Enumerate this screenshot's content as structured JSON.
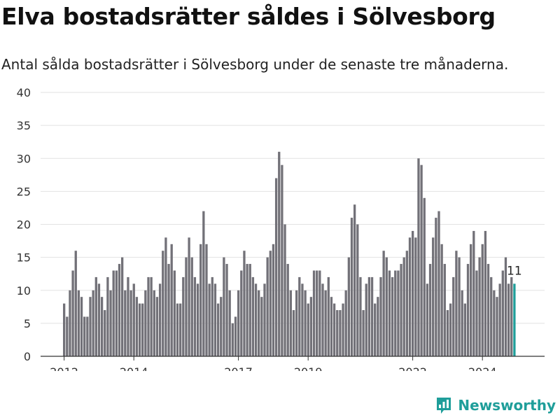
{
  "title": "Elva bostadsrätter såldes i Sölvesborg",
  "subtitle": "Antal sålda bostadsrätter i Sölvesborg under de senaste tre månaderna.",
  "brand": {
    "name": "Newsworthy",
    "icon": "newsworthy-logo-icon"
  },
  "colors": {
    "bar": "#727178",
    "highlight": "#1f9e9a",
    "grid": "#e2e2e2",
    "axis": "#333333"
  },
  "chart_data": {
    "type": "bar",
    "title": "",
    "xlabel": "",
    "ylabel": "",
    "ylim": [
      0,
      40
    ],
    "yticks": [
      0,
      5,
      10,
      15,
      20,
      25,
      30,
      35,
      40
    ],
    "xticks": [
      "2012",
      "2014",
      "2017",
      "2019",
      "2022",
      "2024"
    ],
    "grid": true,
    "legend": "none",
    "highlight_last": true,
    "last_label": "11",
    "values": [
      8,
      6,
      10,
      13,
      16,
      10,
      9,
      6,
      6,
      9,
      10,
      12,
      11,
      9,
      7,
      12,
      10,
      13,
      13,
      14,
      15,
      10,
      12,
      10,
      11,
      9,
      8,
      8,
      10,
      12,
      12,
      10,
      9,
      11,
      16,
      18,
      14,
      17,
      13,
      8,
      8,
      12,
      15,
      18,
      15,
      12,
      11,
      17,
      22,
      17,
      11,
      12,
      11,
      8,
      9,
      15,
      14,
      10,
      5,
      6,
      10,
      13,
      16,
      14,
      14,
      12,
      11,
      10,
      9,
      11,
      15,
      16,
      17,
      27,
      31,
      29,
      20,
      14,
      10,
      7,
      10,
      12,
      11,
      10,
      8,
      9,
      13,
      13,
      13,
      11,
      10,
      12,
      9,
      8,
      7,
      7,
      8,
      10,
      15,
      21,
      23,
      20,
      12,
      7,
      11,
      12,
      12,
      8,
      9,
      12,
      16,
      15,
      13,
      12,
      13,
      13,
      14,
      15,
      16,
      18,
      19,
      18,
      30,
      29,
      24,
      11,
      14,
      18,
      21,
      22,
      17,
      14,
      7,
      8,
      12,
      16,
      15,
      10,
      8,
      14,
      17,
      19,
      13,
      15,
      17,
      19,
      14,
      12,
      10,
      9,
      11,
      13,
      15,
      11,
      12,
      11
    ]
  }
}
